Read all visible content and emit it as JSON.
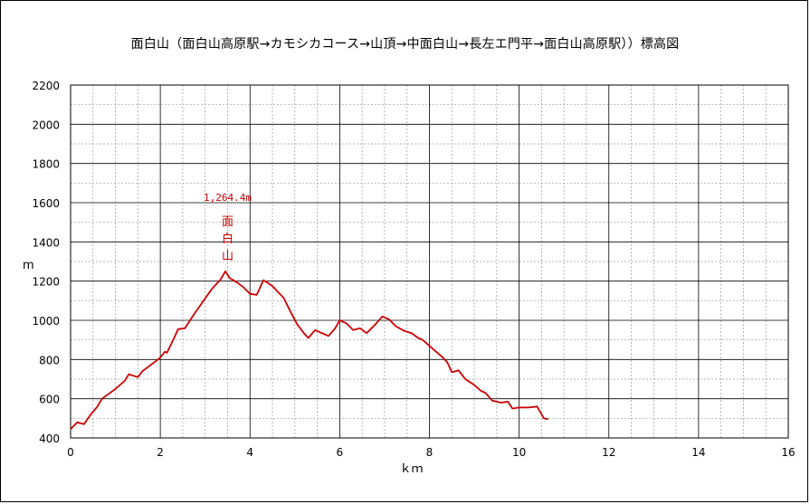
{
  "chart_data": {
    "type": "line",
    "title": "面白山（面白山高原駅→カモシカコース→山頂→中面白山→長左エ門平→面白山高原駅））標高図",
    "xlabel": "ｋｍ",
    "ylabel": "m",
    "xlim": [
      0,
      16
    ],
    "ylim": [
      400,
      2200
    ],
    "x_ticks": [
      0,
      2,
      4,
      6,
      8,
      10,
      12,
      14,
      16
    ],
    "y_ticks": [
      400,
      600,
      800,
      1000,
      1200,
      1400,
      1600,
      1800,
      2000,
      2200
    ],
    "grid": true,
    "line_color": "#cc0000",
    "series": [
      {
        "x": [
          0.0,
          0.15,
          0.3,
          0.45,
          0.6,
          0.7,
          0.85,
          1.0,
          1.1,
          1.2,
          1.3,
          1.5,
          1.6,
          1.8,
          1.95,
          2.0,
          2.1,
          2.15,
          2.4,
          2.55,
          2.75,
          2.95,
          3.15,
          3.35,
          3.45,
          3.55,
          3.7,
          3.85,
          4.0,
          4.15,
          4.3,
          4.4,
          4.5,
          4.6,
          4.75,
          4.9,
          5.05,
          5.2,
          5.3,
          5.45,
          5.6,
          5.75,
          5.9,
          6.0,
          6.15,
          6.3,
          6.45,
          6.6,
          6.8,
          6.95,
          7.1,
          7.25,
          7.45,
          7.6,
          7.75,
          7.85,
          8.0,
          8.15,
          8.3,
          8.4,
          8.5,
          8.65,
          8.8,
          9.0,
          9.15,
          9.25,
          9.4,
          9.6,
          9.75,
          9.85,
          10.0,
          10.2,
          10.4,
          10.55,
          10.65
        ],
        "y": [
          445,
          480,
          470,
          520,
          560,
          600,
          625,
          650,
          670,
          690,
          725,
          710,
          740,
          775,
          800,
          810,
          840,
          835,
          955,
          960,
          1030,
          1095,
          1160,
          1210,
          1250,
          1215,
          1195,
          1170,
          1135,
          1130,
          1205,
          1190,
          1175,
          1150,
          1115,
          1045,
          980,
          935,
          910,
          950,
          935,
          920,
          960,
          1000,
          985,
          950,
          960,
          935,
          980,
          1020,
          1005,
          970,
          945,
          935,
          910,
          900,
          870,
          840,
          810,
          785,
          735,
          745,
          700,
          670,
          640,
          630,
          590,
          580,
          585,
          550,
          555,
          555,
          560,
          500,
          495
        ]
      }
    ],
    "annotations": [
      {
        "text": "1,264.4m",
        "x": 3.5,
        "y": 1264.4
      },
      {
        "text": "面白山",
        "x": 3.5,
        "y": 1264.4
      }
    ]
  }
}
